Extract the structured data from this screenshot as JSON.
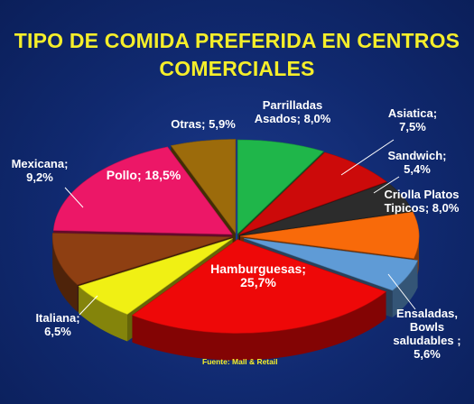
{
  "chart_data": {
    "type": "pie",
    "title": "TIPO DE COMIDA PREFERIDA EN CENTROS\nCOMERCIALES",
    "source": "Fuente: Mall & Retail",
    "slices": [
      {
        "name": "Parrilladas Asados",
        "label_lines": [
          "Parrilladas",
          "Asados; 8,0%"
        ],
        "value": 8.0,
        "color": "#1fb64a"
      },
      {
        "name": "Asiatica",
        "label_lines": [
          "Asiatica;",
          "7,5%"
        ],
        "value": 7.5,
        "color": "#cc0a0a"
      },
      {
        "name": "Sandwich",
        "label_lines": [
          "Sandwich;",
          "5,4%"
        ],
        "value": 5.4,
        "color": "#2c2c2c"
      },
      {
        "name": "Criolla Platos Tipicos",
        "label_lines": [
          "Criolla Platos",
          "Tipicos; 8,0%"
        ],
        "value": 8.0,
        "color": "#f86a0a"
      },
      {
        "name": "Ensaladas, Bowls saludables",
        "label_lines": [
          "Ensaladas,",
          "Bowls",
          "saludables ;",
          "5,6%"
        ],
        "value": 5.6,
        "color": "#5f9bd6"
      },
      {
        "name": "Hamburguesas",
        "label_lines": [
          "Hamburguesas;",
          "25,7%"
        ],
        "value": 25.7,
        "color": "#ee0808"
      },
      {
        "name": "Italiana",
        "label_lines": [
          "Italiana;",
          "6,5%"
        ],
        "value": 6.5,
        "color": "#f0f014"
      },
      {
        "name": "Mexicana",
        "label_lines": [
          "Mexicana;",
          "9,2%"
        ],
        "value": 9.2,
        "color": "#8e3f12"
      },
      {
        "name": "Pollo",
        "label_lines": [
          "Pollo; 18,5%"
        ],
        "value": 18.5,
        "color": "#ec1767"
      },
      {
        "name": "Otras",
        "label_lines": [
          "Otras; 5,9%"
        ],
        "value": 5.9,
        "color": "#9c6b0b"
      }
    ]
  }
}
